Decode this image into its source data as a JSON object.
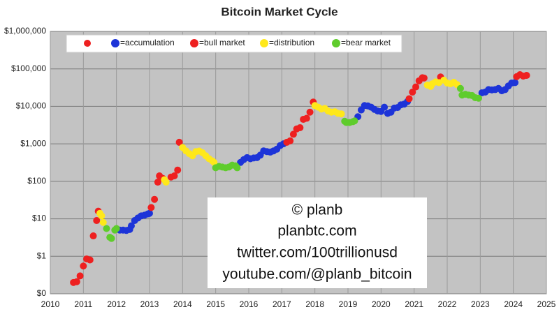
{
  "chart_data": {
    "type": "scatter",
    "title": "Bitcoin Market Cycle",
    "log_y": true,
    "grid": true,
    "xlim": [
      2010,
      2025
    ],
    "xticks": [
      2010,
      2011,
      2012,
      2013,
      2014,
      2015,
      2016,
      2017,
      2018,
      2019,
      2020,
      2021,
      2022,
      2023,
      2024,
      2025
    ],
    "ylim": [
      0.1,
      1000000
    ],
    "yticks": [
      {
        "value": 0.1,
        "label": "$0"
      },
      {
        "value": 1,
        "label": "$1"
      },
      {
        "value": 10,
        "label": "$10"
      },
      {
        "value": 100,
        "label": "$100"
      },
      {
        "value": 1000,
        "label": "$1,000"
      },
      {
        "value": 10000,
        "label": "$10,000"
      },
      {
        "value": 100000,
        "label": "$100,000"
      },
      {
        "value": 1000000,
        "label": "$1,000,000"
      }
    ],
    "annotations": [
      "© planb",
      "planbtc.com",
      "twitter.com/100trillionusd",
      "youtube.com/@planb_bitcoin"
    ],
    "series": [
      {
        "name": "=accumulation",
        "color": "#1d34d8",
        "x": [
          2012.1,
          2012.2,
          2012.3,
          2012.4,
          2012.45,
          2012.55,
          2012.65,
          2012.75,
          2012.85,
          2012.95,
          2013.0,
          2015.75,
          2015.85,
          2015.95,
          2016.05,
          2016.15,
          2016.25,
          2016.35,
          2016.45,
          2016.55,
          2016.65,
          2016.75,
          2016.85,
          2016.95,
          2017.05,
          2019.3,
          2019.4,
          2019.5,
          2019.6,
          2019.7,
          2019.8,
          2019.9,
          2020.0,
          2020.1,
          2020.2,
          2020.3,
          2020.4,
          2020.5,
          2020.6,
          2020.7,
          2020.8,
          2023.05,
          2023.15,
          2023.25,
          2023.35,
          2023.45,
          2023.55,
          2023.65,
          2023.75,
          2023.85,
          2023.95,
          2024.05
        ],
        "values": [
          5,
          5,
          4.9,
          5.2,
          6.5,
          9,
          10.5,
          12,
          12.5,
          13.5,
          14,
          320,
          380,
          430,
          400,
          420,
          430,
          500,
          650,
          620,
          600,
          650,
          720,
          900,
          1000,
          5300,
          8000,
          10500,
          10300,
          9500,
          8300,
          7500,
          7300,
          9500,
          6500,
          7000,
          9000,
          9300,
          11000,
          11500,
          13500,
          23000,
          24000,
          28000,
          27500,
          28000,
          30000,
          26000,
          28000,
          35000,
          42000,
          43000
        ]
      },
      {
        "name": "=bull market",
        "color": "#ee2020",
        "x": [
          2010.7,
          2010.8,
          2010.9,
          2011.0,
          2011.1,
          2011.2,
          2011.3,
          2011.4,
          2011.45,
          2013.05,
          2013.15,
          2013.25,
          2013.3,
          2013.4,
          2013.65,
          2013.75,
          2013.85,
          2013.9,
          2017.15,
          2017.25,
          2017.35,
          2017.45,
          2017.55,
          2017.65,
          2017.75,
          2017.85,
          2017.95,
          2020.85,
          2020.95,
          2021.05,
          2021.15,
          2021.25,
          2021.3,
          2021.8,
          2024.1,
          2024.2,
          2024.3,
          2024.4
        ],
        "values": [
          0.2,
          0.21,
          0.3,
          0.55,
          0.85,
          0.8,
          3.5,
          9,
          16,
          20,
          33,
          95,
          140,
          120,
          130,
          140,
          200,
          1100,
          1100,
          1200,
          1800,
          2500,
          2700,
          4500,
          4800,
          7000,
          13000,
          16000,
          24000,
          33000,
          48000,
          58000,
          57000,
          61000,
          62000,
          70000,
          64000,
          67000
        ]
      },
      {
        "name": "=distribution",
        "color": "#ffe81a",
        "x": [
          2011.5,
          2011.55,
          2011.6,
          2013.45,
          2013.5,
          2014.0,
          2014.1,
          2014.2,
          2014.3,
          2014.4,
          2014.5,
          2014.6,
          2014.7,
          2014.8,
          2014.9,
          2014.95,
          2018.0,
          2018.1,
          2018.2,
          2018.3,
          2018.4,
          2018.5,
          2018.6,
          2018.7,
          2018.8,
          2021.4,
          2021.5,
          2021.55,
          2021.65,
          2021.75,
          2021.9,
          2022.0,
          2022.1,
          2022.2,
          2022.3
        ],
        "values": [
          14,
          12,
          8,
          110,
          95,
          800,
          650,
          550,
          480,
          620,
          640,
          580,
          480,
          400,
          350,
          320,
          10500,
          9500,
          8500,
          8800,
          7500,
          7000,
          7200,
          6500,
          6300,
          37000,
          34000,
          40000,
          45000,
          43000,
          50000,
          42000,
          40000,
          44000,
          38000
        ]
      },
      {
        "name": "=bear market",
        "color": "#5fcc2c",
        "x": [
          2011.7,
          2011.8,
          2011.85,
          2011.95,
          2012.0,
          2015.0,
          2015.1,
          2015.2,
          2015.3,
          2015.4,
          2015.5,
          2015.6,
          2015.65,
          2018.9,
          2018.95,
          2019.05,
          2019.15,
          2019.2,
          2022.4,
          2022.45,
          2022.55,
          2022.65,
          2022.75,
          2022.85,
          2022.95
        ],
        "values": [
          5.5,
          3.2,
          3.0,
          5,
          5.5,
          230,
          250,
          240,
          230,
          240,
          270,
          260,
          230,
          4000,
          3700,
          3700,
          3900,
          4100,
          30000,
          20000,
          21000,
          20000,
          19500,
          17000,
          16500
        ]
      }
    ]
  }
}
